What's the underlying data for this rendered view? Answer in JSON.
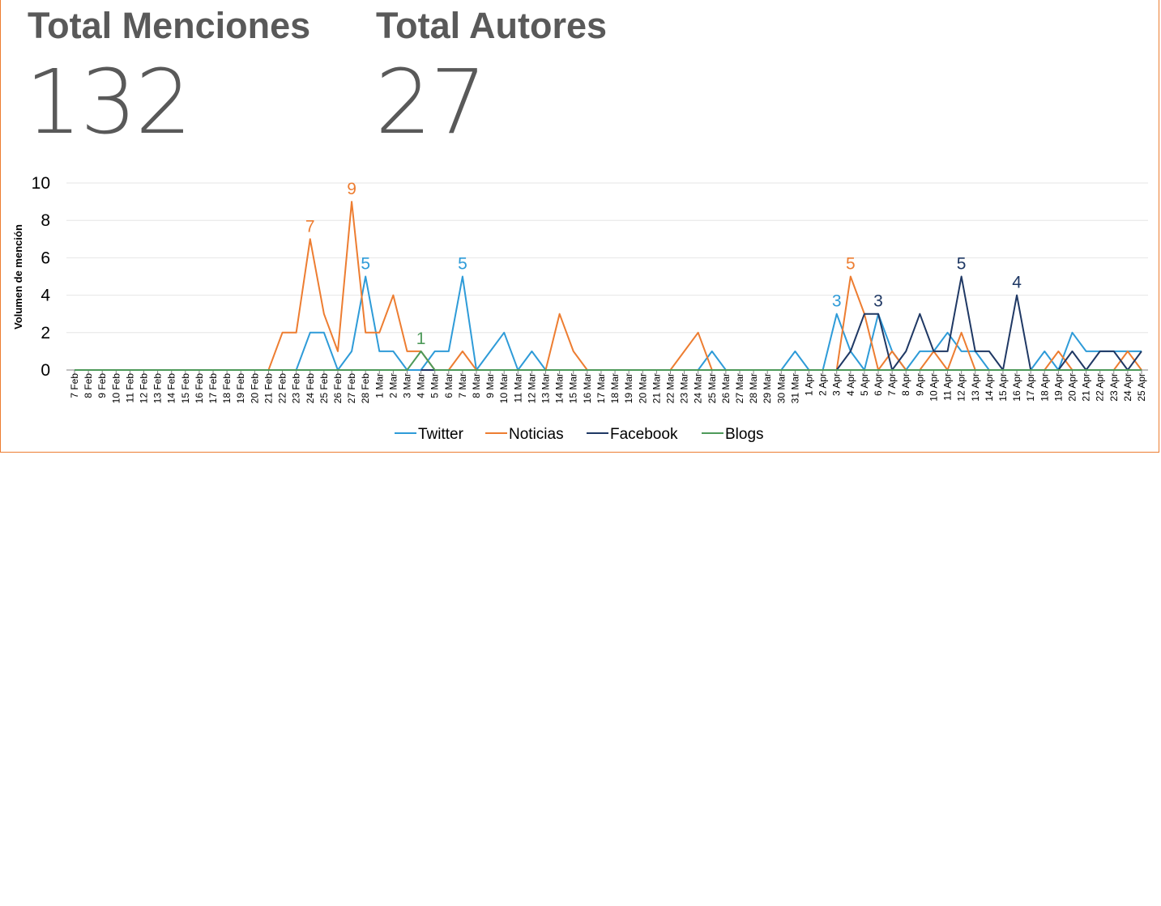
{
  "kpis": {
    "mentions": {
      "label": "Total Menciones",
      "value": "132"
    },
    "authors": {
      "label": "Total Autores",
      "value": "27"
    }
  },
  "chart_data": {
    "type": "line",
    "ylabel": "Volumen de mención",
    "ylim": [
      0,
      10
    ],
    "yticks": [
      0,
      2,
      4,
      6,
      8,
      10
    ],
    "grid": true,
    "legend": "bottom",
    "categories": [
      "7 Feb",
      "8 Feb",
      "9 Feb",
      "10 Feb",
      "11 Feb",
      "12 Feb",
      "13 Feb",
      "14 Feb",
      "15 Feb",
      "16 Feb",
      "17 Feb",
      "18 Feb",
      "19 Feb",
      "20 Feb",
      "21 Feb",
      "22 Feb",
      "23 Feb",
      "24 Feb",
      "25 Feb",
      "26 Feb",
      "27 Feb",
      "28 Feb",
      "1 Mar",
      "2 Mar",
      "3 Mar",
      "4 Mar",
      "5 Mar",
      "6 Mar",
      "7 Mar",
      "8 Mar",
      "9 Mar",
      "10 Mar",
      "11 Mar",
      "12 Mar",
      "13 Mar",
      "14 Mar",
      "15 Mar",
      "16 Mar",
      "17 Mar",
      "18 Mar",
      "19 Mar",
      "20 Mar",
      "21 Mar",
      "22 Mar",
      "23 Mar",
      "24 Mar",
      "25 Mar",
      "26 Mar",
      "27 Mar",
      "28 Mar",
      "29 Mar",
      "30 Mar",
      "31 Mar",
      "1 Apr",
      "2 Apr",
      "3 Apr",
      "4 Apr",
      "5 Apr",
      "6 Apr",
      "7 Apr",
      "8 Apr",
      "9 Apr",
      "10 Apr",
      "11 Apr",
      "12 Apr",
      "13 Apr",
      "14 Apr",
      "15 Apr",
      "16 Apr",
      "17 Apr",
      "18 Apr",
      "19 Apr",
      "20 Apr",
      "21 Apr",
      "22 Apr",
      "23 Apr",
      "24 Apr",
      "25 Apr"
    ],
    "series": [
      {
        "name": "Twitter",
        "color": "#2E9BD8",
        "values": [
          0,
          0,
          0,
          0,
          0,
          0,
          0,
          0,
          0,
          0,
          0,
          0,
          0,
          0,
          0,
          0,
          0,
          2,
          2,
          0,
          1,
          5,
          1,
          1,
          0,
          0,
          1,
          1,
          5,
          0,
          1,
          2,
          0,
          1,
          0,
          0,
          0,
          0,
          0,
          0,
          0,
          0,
          0,
          0,
          0,
          0,
          1,
          0,
          0,
          0,
          0,
          0,
          1,
          0,
          0,
          3,
          1,
          0,
          3,
          1,
          0,
          1,
          1,
          2,
          1,
          1,
          0,
          0,
          0,
          0,
          1,
          0,
          2,
          1,
          1,
          1,
          1,
          1
        ]
      },
      {
        "name": "Noticias",
        "color": "#ED7D31",
        "values": [
          0,
          0,
          0,
          0,
          0,
          0,
          0,
          0,
          0,
          0,
          0,
          0,
          0,
          0,
          0,
          2,
          2,
          7,
          3,
          1,
          9,
          2,
          2,
          4,
          1,
          1,
          0,
          0,
          1,
          0,
          0,
          0,
          0,
          0,
          0,
          3,
          1,
          0,
          0,
          0,
          0,
          0,
          0,
          0,
          1,
          2,
          0,
          0,
          0,
          0,
          0,
          0,
          0,
          0,
          0,
          0,
          5,
          3,
          0,
          1,
          0,
          0,
          1,
          0,
          2,
          0,
          0,
          0,
          0,
          0,
          0,
          1,
          0,
          0,
          0,
          0,
          1,
          0
        ]
      },
      {
        "name": "Facebook",
        "color": "#1F3864",
        "values": [
          null,
          null,
          null,
          null,
          null,
          null,
          null,
          null,
          null,
          null,
          null,
          null,
          null,
          null,
          null,
          null,
          null,
          null,
          null,
          null,
          null,
          null,
          null,
          null,
          null,
          0,
          0,
          null,
          null,
          null,
          null,
          null,
          null,
          null,
          null,
          null,
          null,
          null,
          null,
          null,
          null,
          null,
          null,
          null,
          null,
          null,
          null,
          null,
          null,
          null,
          null,
          null,
          null,
          null,
          null,
          0,
          1,
          3,
          3,
          0,
          1,
          3,
          1,
          1,
          5,
          1,
          1,
          0,
          4,
          0,
          0,
          0,
          1,
          0,
          1,
          1,
          0,
          1
        ]
      },
      {
        "name": "Blogs",
        "color": "#4E9A5A",
        "values": [
          0,
          0,
          0,
          0,
          0,
          0,
          0,
          0,
          0,
          0,
          0,
          0,
          0,
          0,
          0,
          0,
          0,
          0,
          0,
          0,
          0,
          0,
          0,
          0,
          0,
          1,
          0,
          0,
          0,
          0,
          0,
          0,
          0,
          0,
          0,
          0,
          0,
          0,
          0,
          0,
          0,
          0,
          0,
          0,
          0,
          0,
          0,
          0,
          0,
          0,
          0,
          0,
          0,
          0,
          0,
          0,
          0,
          0,
          0,
          0,
          0,
          0,
          0,
          0,
          0,
          0,
          0,
          0,
          0,
          0,
          0,
          0,
          0,
          0,
          0,
          0,
          0,
          0
        ]
      }
    ],
    "annotations": [
      {
        "series": "Noticias",
        "category": "24 Feb",
        "text": "7"
      },
      {
        "series": "Noticias",
        "category": "27 Feb",
        "text": "9"
      },
      {
        "series": "Twitter",
        "category": "28 Feb",
        "text": "5"
      },
      {
        "series": "Blogs",
        "category": "4 Mar",
        "text": "1"
      },
      {
        "series": "Twitter",
        "category": "7 Mar",
        "text": "5"
      },
      {
        "series": "Twitter",
        "category": "3 Apr",
        "text": "3"
      },
      {
        "series": "Noticias",
        "category": "4 Apr",
        "text": "5"
      },
      {
        "series": "Facebook",
        "category": "6 Apr",
        "text": "3"
      },
      {
        "series": "Facebook",
        "category": "12 Apr",
        "text": "5"
      },
      {
        "series": "Facebook",
        "category": "16 Apr",
        "text": "4"
      }
    ]
  }
}
